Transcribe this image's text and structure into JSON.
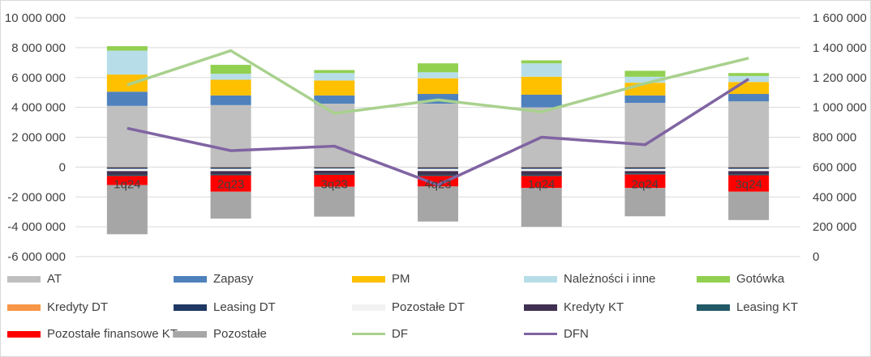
{
  "chart_data": {
    "type": "bar",
    "stacked": true,
    "categories": [
      "1q24",
      "2q23",
      "3q23",
      "4q23",
      "1q24",
      "2q24",
      "3q24"
    ],
    "ylim_left": [
      -6000000,
      10000000
    ],
    "yticks_left": [
      "10 000 000",
      "8 000 000",
      "6 000 000",
      "4 000 000",
      "2 000 000",
      "0",
      "-2 000 000",
      "-4 000 000",
      "-6 000 000"
    ],
    "ylim_right": [
      0,
      1600000
    ],
    "yticks_right": [
      "1 600 000",
      "1 400 000",
      "1 200 000",
      "1 000 000",
      "800 000",
      "600 000",
      "400 000",
      "200 000",
      "0"
    ],
    "grid": true,
    "legend_position": "bottom",
    "series": [
      {
        "name": "AT",
        "color": "#bfbfbf",
        "values": [
          4100000,
          4150000,
          4250000,
          4250000,
          4000000,
          4300000,
          4400000
        ]
      },
      {
        "name": "Zapasy",
        "color": "#4f81bd",
        "values": [
          950000,
          650000,
          550000,
          650000,
          850000,
          500000,
          500000
        ]
      },
      {
        "name": "PM",
        "color": "#ffc000",
        "values": [
          1150000,
          1050000,
          1000000,
          1050000,
          1200000,
          850000,
          800000
        ]
      },
      {
        "name": "Należności i inne",
        "color": "#b7dee8",
        "values": [
          1600000,
          400000,
          500000,
          400000,
          900000,
          400000,
          400000
        ]
      },
      {
        "name": "Gotówka",
        "color": "#92d050",
        "values": [
          300000,
          600000,
          200000,
          600000,
          200000,
          400000,
          200000
        ]
      },
      {
        "name": "Kredyty DT",
        "color": "#f79646",
        "values": [
          -20000,
          -20000,
          -20000,
          -20000,
          -20000,
          -20000,
          -20000
        ]
      },
      {
        "name": "Leasing DT",
        "color": "#1f3864",
        "values": [
          -100000,
          -100000,
          -80000,
          -100000,
          -100000,
          -100000,
          -100000
        ]
      },
      {
        "name": "Pozostałe DT",
        "color": "#f2f2f2",
        "values": [
          -150000,
          -150000,
          -150000,
          -150000,
          -150000,
          -150000,
          -150000
        ]
      },
      {
        "name": "Kredyty KT",
        "color": "#403152",
        "values": [
          -250000,
          -200000,
          -200000,
          -250000,
          -250000,
          -150000,
          -200000
        ]
      },
      {
        "name": "Leasing KT",
        "color": "#215967",
        "values": [
          -80000,
          -80000,
          -70000,
          -80000,
          -80000,
          -80000,
          -80000
        ]
      },
      {
        "name": "Pozostałe finansowe KT",
        "color": "#ff0000",
        "values": [
          -600000,
          -1100000,
          -800000,
          -700000,
          -800000,
          -900000,
          -1100000
        ]
      },
      {
        "name": "Pozostałe",
        "color": "#a6a6a6",
        "values": [
          -3300000,
          -1800000,
          -2000000,
          -2350000,
          -2600000,
          -1900000,
          -1900000
        ]
      }
    ],
    "line_series": [
      {
        "name": "DF",
        "color": "#a9d18e",
        "axis": "right",
        "values": [
          1150000,
          1380000,
          960000,
          1050000,
          970000,
          1160000,
          1330000
        ]
      },
      {
        "name": "DFN",
        "color": "#8064a2",
        "axis": "right",
        "values": [
          860000,
          710000,
          740000,
          480000,
          800000,
          750000,
          1190000
        ]
      }
    ]
  }
}
